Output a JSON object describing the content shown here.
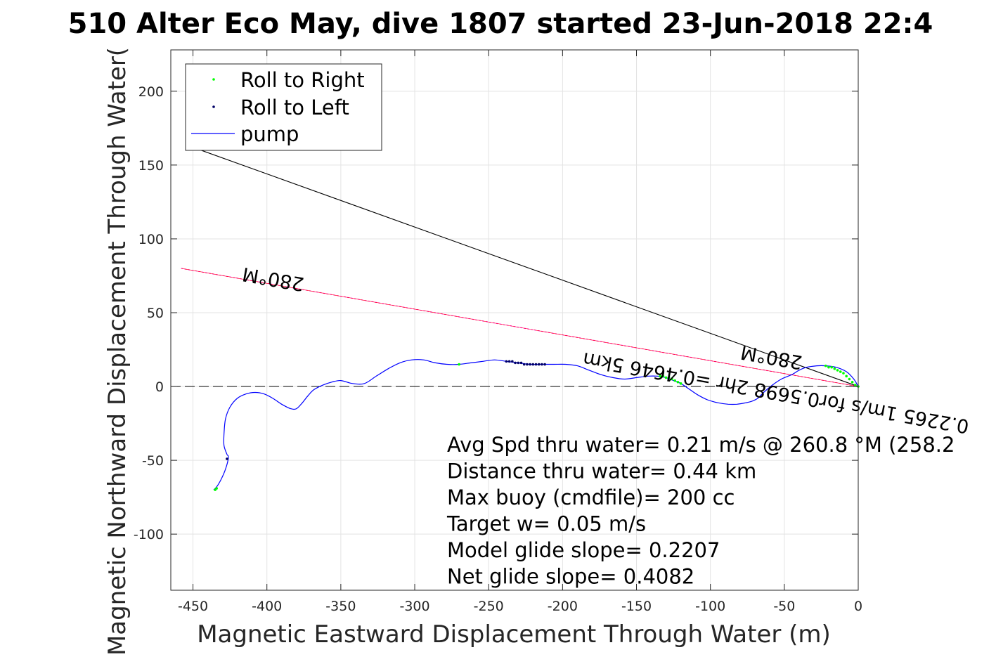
{
  "chart_data": {
    "type": "line",
    "title": "510 Alter Eco May, dive 1807 started 23-Jun-2018 22:4",
    "xlabel": "Magnetic Eastward Displacement Through Water (m)",
    "ylabel": "Magnetic Northward Displacement Through Water(",
    "xlim": [
      -465,
      0
    ],
    "ylim": [
      -138,
      228
    ],
    "xticks": [
      -450,
      -400,
      -350,
      -300,
      -250,
      -200,
      -150,
      -100,
      -50,
      0
    ],
    "yticks": [
      -100,
      -50,
      0,
      50,
      100,
      150,
      200
    ],
    "grid": true,
    "legend": {
      "placement": "top-left",
      "entries": [
        "Roll to Right",
        "Roll to Left",
        "pump"
      ]
    },
    "series": [
      {
        "name": "pump",
        "color": "#0000ff",
        "x": [
          0,
          -3,
          -8,
          -15,
          -22,
          -28,
          -35,
          -40,
          -45,
          -52,
          -58,
          -64,
          -68,
          -72,
          -76,
          -82,
          -88,
          -95,
          -102,
          -108,
          -114,
          -120,
          -125,
          -130,
          -136,
          -142,
          -150,
          -158,
          -166,
          -174,
          -182,
          -190,
          -198,
          -206,
          -214,
          -222,
          -230,
          -238,
          -246,
          -254,
          -262,
          -270,
          -278,
          -286,
          -294,
          -302,
          -310,
          -318,
          -326,
          -334,
          -342,
          -350,
          -356,
          -362,
          -368,
          -372,
          -376,
          -380,
          -384,
          -390,
          -396,
          -402,
          -408,
          -414,
          -420,
          -425,
          -428,
          -429,
          -429,
          -427,
          -426,
          -428,
          -431,
          -434,
          -436
        ],
        "y": [
          0,
          5,
          10,
          13,
          14,
          14,
          13,
          11,
          8,
          5,
          1,
          -4,
          -8,
          -10,
          -11,
          -12,
          -12,
          -11,
          -9,
          -6,
          -2,
          2,
          4,
          6,
          7,
          7,
          6,
          5,
          6,
          8,
          11,
          14,
          15,
          15,
          15,
          15,
          16,
          17,
          18,
          17,
          16,
          15,
          15,
          16,
          18,
          18,
          16,
          12,
          7,
          2,
          2,
          4,
          3,
          1,
          -2,
          -6,
          -11,
          -15,
          -15,
          -12,
          -8,
          -5,
          -4,
          -5,
          -8,
          -14,
          -22,
          -32,
          -40,
          -46,
          -48,
          -56,
          -63,
          -68,
          -70
        ]
      }
    ],
    "roll_right_points": {
      "color": "#00ff00",
      "x": [
        0,
        -2,
        -4,
        -6,
        -8,
        -10,
        -12,
        -14,
        -16,
        -18,
        -20,
        -22,
        -120,
        -122,
        -124,
        -126,
        -128,
        -130,
        -132,
        -134,
        -270,
        -434,
        -435
      ],
      "y": [
        0,
        1,
        3,
        5,
        7,
        9,
        10,
        11,
        12,
        13,
        13,
        14,
        2,
        3,
        4,
        5,
        6,
        6,
        7,
        7,
        15,
        -69,
        -70
      ]
    },
    "roll_left_points": {
      "color": "#000066",
      "x": [
        -212,
        -214,
        -216,
        -218,
        -220,
        -222,
        -224,
        -226,
        -228,
        -230,
        -232,
        -234,
        -236,
        -238,
        -427
      ],
      "y": [
        15,
        15,
        15,
        15,
        15,
        15,
        15,
        15,
        16,
        16,
        16,
        17,
        17,
        17,
        -49
      ]
    },
    "heading_lines": [
      {
        "color": "#ff00ff",
        "x": [
          0,
          -458
        ],
        "y": [
          0,
          80
        ]
      },
      {
        "color": "#000000",
        "x": [
          0,
          -450
        ],
        "y": [
          0,
          162
        ]
      },
      {
        "color": "#ff0000",
        "x": [
          0,
          -458
        ],
        "y": [
          0,
          80
        ]
      }
    ],
    "zero_line_y": 0,
    "rotated_labels": [
      {
        "text": "280°M",
        "x": -395,
        "y": 77,
        "angle_deg": 190
      },
      {
        "text": "0.2265 1m/s for0.5698 2hr =0.4646 5km",
        "x": -55,
        "y": 0,
        "angle_deg": 190
      },
      {
        "text": "280°M",
        "x": -58,
        "y": 24,
        "angle_deg": 190
      }
    ],
    "annotations": [
      "Avg Spd thru water=  0.21 m/s @ 260.8 °M (258.2",
      "Distance thru water=  0.44 km",
      "Max buoy (cmdfile)= 200 cc",
      "Target w= 0.05 m/s",
      "Model glide slope= 0.2207",
      "Net glide slope= 0.4082"
    ]
  }
}
